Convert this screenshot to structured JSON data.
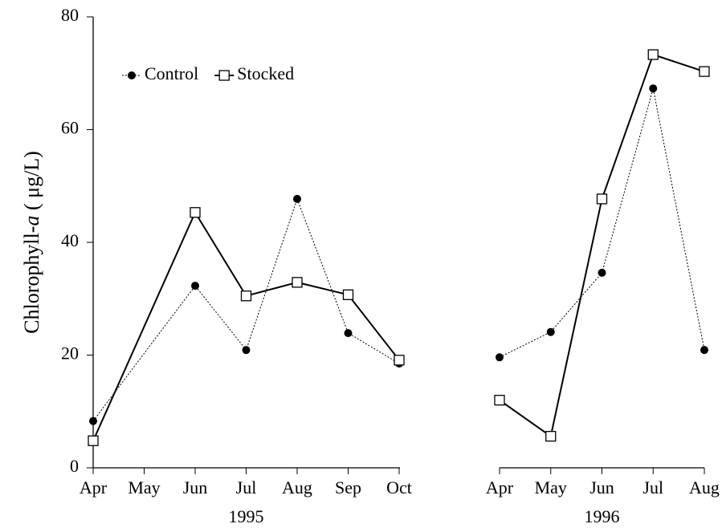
{
  "chart_data": [
    {
      "type": "line",
      "ylabel": [
        "Chlorophyll-",
        "a",
        " ( μg/L)"
      ],
      "xlabel": "1995",
      "categories": [
        "Apr",
        "May",
        "Jun",
        "Jul",
        "Aug",
        "Sep",
        "Oct"
      ],
      "ylim": [
        0,
        80
      ],
      "yticks": [
        0,
        20,
        40,
        60,
        80
      ],
      "legend": "upper left",
      "series": [
        {
          "name": "Control",
          "color": "#000000",
          "marker": "circle",
          "dash": "dotted",
          "x": [
            "Apr",
            "Jun",
            "Jul",
            "Aug",
            "Sep",
            "Oct"
          ],
          "values": [
            8.3,
            32.3,
            20.9,
            47.7,
            23.9,
            18.5
          ]
        },
        {
          "name": "Stocked",
          "color": "#000000",
          "marker": "square",
          "dash": "solid",
          "x": [
            "Apr",
            "Jun",
            "Jul",
            "Aug",
            "Sep",
            "Oct"
          ],
          "values": [
            4.8,
            45.3,
            30.5,
            32.9,
            30.7,
            19.1
          ]
        }
      ]
    },
    {
      "type": "line",
      "xlabel": "1996",
      "categories": [
        "Apr",
        "May",
        "Jun",
        "Jul",
        "Aug"
      ],
      "ylim": [
        0,
        80
      ],
      "series": [
        {
          "name": "Control",
          "color": "#000000",
          "marker": "circle",
          "dash": "dotted",
          "x": [
            "Apr",
            "May",
            "Jun",
            "Jul",
            "Aug"
          ],
          "values": [
            19.6,
            24.1,
            34.6,
            67.3,
            20.9
          ]
        },
        {
          "name": "Stocked",
          "color": "#000000",
          "marker": "square",
          "dash": "solid",
          "x": [
            "Apr",
            "May",
            "Jun",
            "Jul",
            "Aug"
          ],
          "values": [
            12.0,
            5.6,
            47.7,
            73.3,
            70.3
          ]
        }
      ]
    }
  ]
}
